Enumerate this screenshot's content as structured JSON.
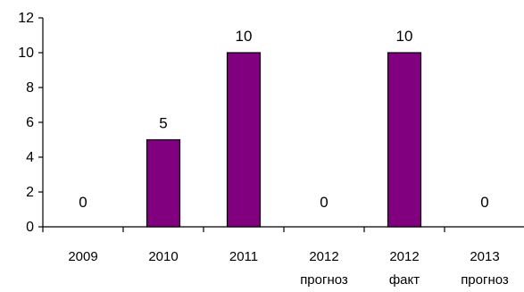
{
  "chart_data": {
    "type": "bar",
    "categories": [
      [
        "2009"
      ],
      [
        "2010"
      ],
      [
        "2011"
      ],
      [
        "2012",
        "прогноз"
      ],
      [
        "2012",
        "факт"
      ],
      [
        "2013",
        "прогноз"
      ]
    ],
    "values": [
      0,
      5,
      10,
      0,
      10,
      0
    ],
    "data_labels": [
      "0",
      "5",
      "10",
      "0",
      "10",
      "0"
    ],
    "title": "",
    "xlabel": "",
    "ylabel": "",
    "ylim": [
      0,
      12
    ],
    "yticks": [
      0,
      2,
      4,
      6,
      8,
      10,
      12
    ],
    "grid": false,
    "legend": "none",
    "bar_color": "#800080",
    "bar_edge_color": "#000000"
  }
}
